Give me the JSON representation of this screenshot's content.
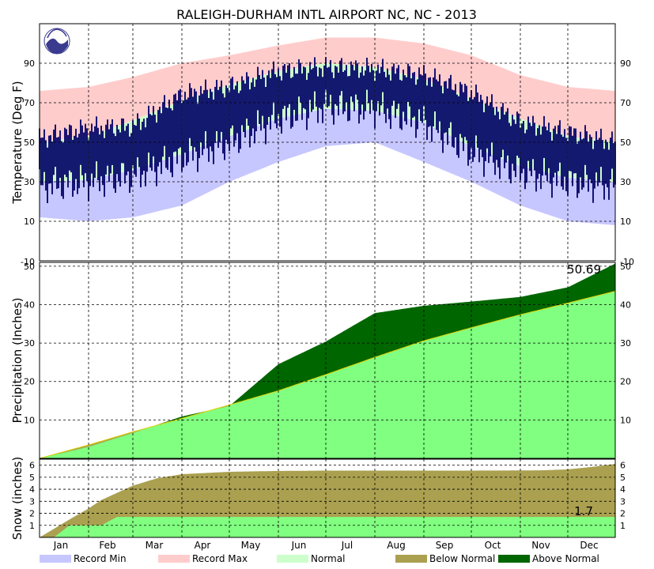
{
  "chart_data": [
    {
      "type": "area",
      "panel": "temperature",
      "title": "RALEIGH-DURHAM INTL AIRPORT NC, NC - 2013",
      "ylabel": "Temperature (Deg F)",
      "ylim": [
        -10,
        110
      ],
      "yticks": [
        10,
        30,
        50,
        70,
        90
      ],
      "bottom_label": "-10",
      "grid": true,
      "logo": "noaa-logo",
      "colors": {
        "record_min": "#c7c7ff",
        "record_max": "#ffcccc",
        "normal": "#ccffcc",
        "observed": "#000066"
      },
      "x": [
        1,
        32,
        60,
        91,
        121,
        152,
        182,
        213,
        244,
        274,
        305,
        335,
        365
      ],
      "series": [
        {
          "name": "Record Min",
          "values": [
            12,
            10,
            12,
            18,
            30,
            40,
            48,
            50,
            40,
            30,
            18,
            10,
            8
          ]
        },
        {
          "name": "Record Max",
          "values": [
            76,
            78,
            83,
            90,
            94,
            99,
            103,
            103,
            100,
            94,
            84,
            78,
            76
          ]
        },
        {
          "name": "Normal Low",
          "values": [
            30,
            31,
            36,
            44,
            53,
            62,
            67,
            66,
            60,
            48,
            38,
            32,
            30
          ]
        },
        {
          "name": "Normal High",
          "values": [
            50,
            53,
            61,
            71,
            79,
            86,
            90,
            88,
            82,
            72,
            62,
            53,
            50
          ]
        },
        {
          "name": "Observed Low",
          "values": [
            28,
            30,
            33,
            42,
            50,
            62,
            68,
            67,
            60,
            45,
            35,
            30,
            28
          ]
        },
        {
          "name": "Observed High",
          "values": [
            52,
            57,
            58,
            74,
            78,
            86,
            88,
            87,
            84,
            75,
            60,
            55,
            50
          ]
        }
      ]
    },
    {
      "type": "area",
      "panel": "precipitation",
      "ylabel": "Precipitation (Inches)",
      "ylim": [
        0,
        51
      ],
      "yticks": [
        10,
        20,
        30,
        40,
        50
      ],
      "annotation": "50.69",
      "grid": true,
      "x": [
        1,
        32,
        60,
        91,
        121,
        152,
        182,
        213,
        244,
        274,
        305,
        335,
        365
      ],
      "series": [
        {
          "name": "Normal",
          "values": [
            0,
            3.5,
            6.9,
            10.4,
            13.9,
            17.6,
            21.8,
            26.3,
            30.6,
            34.0,
            37.4,
            40.4,
            43.5
          ]
        },
        {
          "name": "Observed",
          "values": [
            0,
            3.0,
            6.6,
            10.9,
            13.6,
            24.5,
            30.4,
            37.8,
            39.7,
            40.8,
            42.0,
            44.5,
            50.69
          ]
        }
      ]
    },
    {
      "type": "area",
      "panel": "snow",
      "ylabel": "Snow (inches)",
      "ylim": [
        0,
        6.5
      ],
      "yticks": [
        1,
        2,
        3,
        4,
        5,
        6
      ],
      "annotation": "1.7",
      "grid": true,
      "categories": [
        "Jan",
        "Feb",
        "Mar",
        "Apr",
        "May",
        "Jun",
        "Jul",
        "Aug",
        "Sep",
        "Oct",
        "Nov",
        "Dec"
      ],
      "x": [
        1,
        10,
        20,
        32,
        40,
        50,
        60,
        75,
        91,
        121,
        152,
        182,
        213,
        244,
        274,
        305,
        320,
        335,
        350,
        365
      ],
      "series": [
        {
          "name": "Normal",
          "values": [
            0,
            0.7,
            1.5,
            2.4,
            3.1,
            3.7,
            4.3,
            4.9,
            5.25,
            5.45,
            5.52,
            5.55,
            5.55,
            5.55,
            5.55,
            5.56,
            5.58,
            5.65,
            5.85,
            6.1
          ]
        },
        {
          "name": "Observed",
          "values": [
            0,
            0,
            1.0,
            1.0,
            1.0,
            1.7,
            1.7,
            1.7,
            1.7,
            1.7,
            1.7,
            1.7,
            1.7,
            1.7,
            1.7,
            1.7,
            1.7,
            1.7,
            1.7,
            1.7
          ]
        }
      ]
    }
  ],
  "legend": [
    {
      "label": "Record Min",
      "color": "#c7c7ff"
    },
    {
      "label": "Record Max",
      "color": "#ffcccc"
    },
    {
      "label": "Normal",
      "color": "#ccffcc"
    },
    {
      "label": "Below Normal",
      "color": "#aaa050"
    },
    {
      "label": "Above Normal",
      "color": "#006600"
    }
  ]
}
